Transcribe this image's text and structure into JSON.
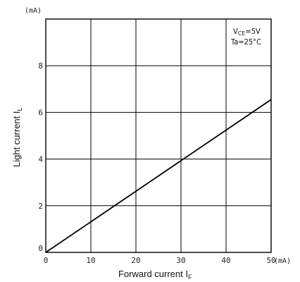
{
  "chart_data": {
    "type": "line",
    "x_unit": "(mA)",
    "y_unit": "(mA)",
    "xlim": [
      0,
      50
    ],
    "ylim": [
      0,
      10
    ],
    "x_ticks": [
      0,
      10,
      20,
      30,
      40,
      50
    ],
    "x_tick_labels": [
      "0",
      "10",
      "20",
      "30",
      "40",
      "50"
    ],
    "y_ticks": [
      0,
      2,
      4,
      6,
      8
    ],
    "y_tick_labels": [
      "0",
      "2",
      "4",
      "6",
      "8"
    ],
    "grid": true,
    "xlabel": {
      "main": "Forward current I",
      "sub": "F"
    },
    "ylabel": {
      "main": "Light current I",
      "sub": "L"
    },
    "annotations": [
      {
        "main": "V",
        "sub": "CE",
        "rest": "=5V"
      },
      {
        "text": "Ta=25°C"
      }
    ],
    "series": [
      {
        "x": [
          0,
          50
        ],
        "y": [
          0,
          6.55
        ]
      }
    ]
  }
}
